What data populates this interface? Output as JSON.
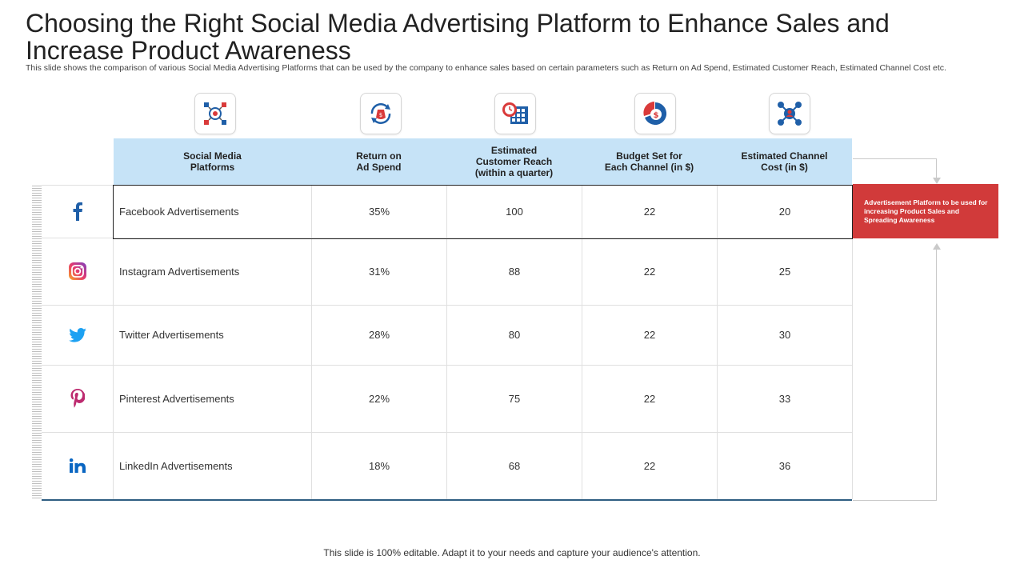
{
  "title": "Choosing the Right Social Media Advertising Platform to Enhance Sales and Increase Product Awareness",
  "subtitle": "This slide shows the comparison of various Social Media Advertising Platforms that can be used by the company to enhance sales based on certain parameters such as Return on Ad Spend, Estimated Customer Reach, Estimated Channel Cost etc.",
  "header_icons": [
    "network-target-icon",
    "money-bag-cycle-icon",
    "calendar-clock-icon",
    "dollar-pie-chart-icon",
    "people-network-icon"
  ],
  "table": {
    "headers": [
      "Social Media\nPlatforms",
      "Return on\nAd Spend",
      "Estimated\nCustomer Reach\n(within a quarter)",
      "Budget  Set for\nEach Channel (in $)",
      "Estimated Channel\nCost (in $)"
    ],
    "rows": [
      {
        "icon": "facebook-icon",
        "platform": "Facebook Advertisements",
        "roas": "35%",
        "reach": "100",
        "budget": "22",
        "cost": "20"
      },
      {
        "icon": "instagram-icon",
        "platform": "Instagram Advertisements",
        "roas": "31%",
        "reach": "88",
        "budget": "22",
        "cost": "25"
      },
      {
        "icon": "twitter-icon",
        "platform": "Twitter Advertisements",
        "roas": "28%",
        "reach": "80",
        "budget": "22",
        "cost": "30"
      },
      {
        "icon": "pinterest-icon",
        "platform": "Pinterest Advertisements",
        "roas": "22%",
        "reach": "75",
        "budget": "22",
        "cost": "33"
      },
      {
        "icon": "linkedin-icon",
        "platform": "LinkedIn Advertisements",
        "roas": "18%",
        "reach": "68",
        "budget": "22",
        "cost": "36"
      }
    ]
  },
  "callout": "Advertisement Platform to be used for increasing Product Sales and Spreading Awareness",
  "footer": "This slide is 100% editable. Adapt it to your needs and capture your audience's attention.",
  "colors": {
    "header_bg": "#c6e3f7",
    "callout_bg": "#d13a3a",
    "facebook": "#1f5fa8",
    "twitter": "#1da1f2",
    "pinterest": "#bd2a6f",
    "linkedin": "#0a66c2",
    "icon_red": "#d93a3a",
    "icon_blue": "#1f5fa8"
  }
}
